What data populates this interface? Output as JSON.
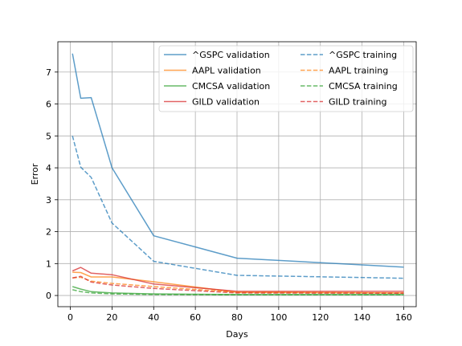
{
  "chart_data": {
    "type": "line",
    "title": "",
    "xlabel": "Days",
    "ylabel": "Error",
    "xlim": [
      -6,
      166
    ],
    "ylim": [
      -0.35,
      7.95
    ],
    "xticks": [
      0,
      20,
      40,
      60,
      80,
      100,
      120,
      140,
      160
    ],
    "yticks": [
      0,
      1,
      2,
      3,
      4,
      5,
      6,
      7
    ],
    "grid": true,
    "legend": {
      "location": "upper-right",
      "columns": 2
    },
    "series": [
      {
        "name": "^GSPC validation",
        "color": "#1f77b4",
        "dash": "solid",
        "x": [
          1,
          5,
          10,
          20,
          40,
          80,
          160
        ],
        "y": [
          7.58,
          6.18,
          6.2,
          4.0,
          1.87,
          1.17,
          0.89
        ]
      },
      {
        "name": "AAPL validation",
        "color": "#ff7f0e",
        "dash": "solid",
        "x": [
          1,
          5,
          10,
          20,
          40,
          80,
          160
        ],
        "y": [
          0.73,
          0.72,
          0.58,
          0.58,
          0.43,
          0.1,
          0.08
        ]
      },
      {
        "name": "CMCSA validation",
        "color": "#2ca02c",
        "dash": "solid",
        "x": [
          1,
          5,
          10,
          20,
          40,
          80,
          160
        ],
        "y": [
          0.28,
          0.2,
          0.12,
          0.08,
          0.05,
          0.03,
          0.03
        ]
      },
      {
        "name": "GILD validation",
        "color": "#d62728",
        "dash": "solid",
        "x": [
          1,
          5,
          10,
          20,
          40,
          80,
          160
        ],
        "y": [
          0.77,
          0.88,
          0.7,
          0.65,
          0.36,
          0.13,
          0.13
        ]
      },
      {
        "name": "^GSPC training",
        "color": "#1f77b4",
        "dash": "dashed",
        "x": [
          1,
          5,
          10,
          20,
          40,
          80,
          160
        ],
        "y": [
          5.0,
          4.02,
          3.7,
          2.27,
          1.07,
          0.63,
          0.54
        ]
      },
      {
        "name": "AAPL training",
        "color": "#ff7f0e",
        "dash": "dashed",
        "x": [
          1,
          5,
          10,
          20,
          40,
          80,
          160
        ],
        "y": [
          0.55,
          0.57,
          0.45,
          0.38,
          0.28,
          0.1,
          0.08
        ]
      },
      {
        "name": "CMCSA training",
        "color": "#2ca02c",
        "dash": "dashed",
        "x": [
          1,
          5,
          10,
          20,
          40,
          80,
          160
        ],
        "y": [
          0.18,
          0.12,
          0.08,
          0.05,
          0.03,
          0.02,
          0.02
        ]
      },
      {
        "name": "GILD training",
        "color": "#d62728",
        "dash": "dashed",
        "x": [
          1,
          5,
          10,
          20,
          40,
          80,
          160
        ],
        "y": [
          0.55,
          0.6,
          0.42,
          0.33,
          0.22,
          0.08,
          0.07
        ]
      }
    ]
  }
}
